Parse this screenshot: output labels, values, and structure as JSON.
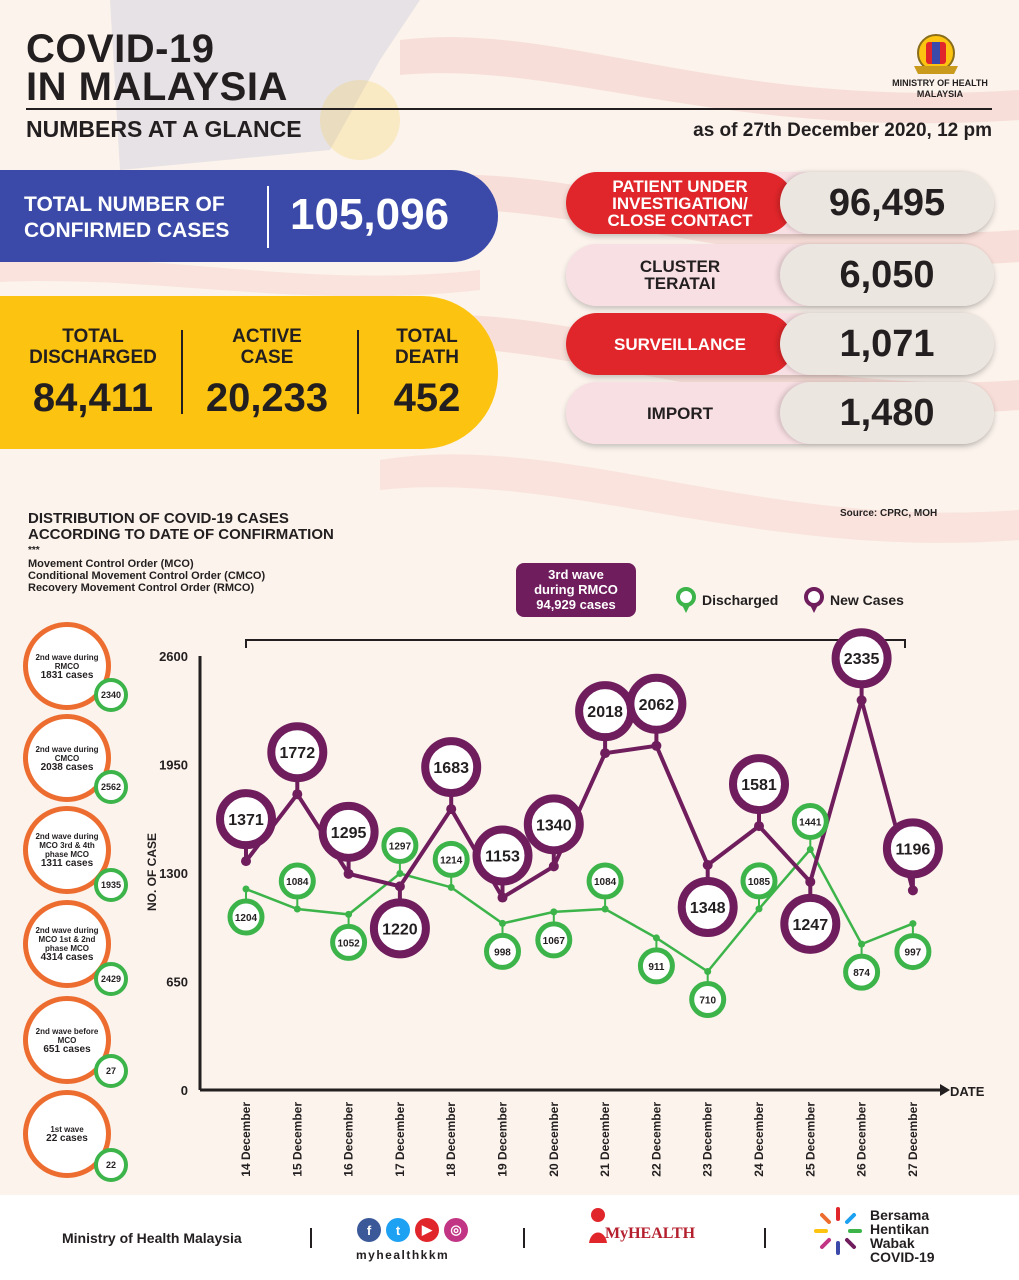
{
  "header": {
    "title_line1": "COVID-19",
    "title_line2": "IN MALAYSIA",
    "subtitle": "NUMBERS AT A GLANCE",
    "as_of": "as of 27th December 2020, 12 pm",
    "ministry_line1": "MINISTRY OF HEALTH",
    "ministry_line2": "MALAYSIA"
  },
  "totals": {
    "confirmed_label1": "TOTAL NUMBER OF",
    "confirmed_label2": "CONFIRMED CASES",
    "confirmed_value": "105,096",
    "discharged_label1": "TOTAL",
    "discharged_label2": "DISCHARGED",
    "discharged_value": "84,411",
    "active_label1": "ACTIVE",
    "active_label2": "CASE",
    "active_value": "20,233",
    "death_label1": "TOTAL",
    "death_label2": "DEATH",
    "death_value": "452"
  },
  "categories": [
    {
      "label": "PATIENT UNDER INVESTIGATION/ CLOSE CONTACT",
      "value": "96,495"
    },
    {
      "label": "CLUSTER TERATAI",
      "value": "6,050"
    },
    {
      "label": "SURVEILLANCE",
      "value": "1,071"
    },
    {
      "label": "IMPORT",
      "value": "1,480"
    }
  ],
  "chart_section": {
    "title_line1": "DISTRIBUTION OF COVID-19 CASES",
    "title_line2": "ACCORDING TO DATE OF CONFIRMATION",
    "stars": "***",
    "mco": "Movement Control Order (MCO)",
    "cmco": "Conditional Movement Control Order (CMCO)",
    "rmco": "Recovery Movement Control Order (RMCO)",
    "source": "Source: CPRC, MOH",
    "wave_line1": "3rd wave",
    "wave_line2": "during RMCO",
    "wave_line3": "94,929 cases",
    "legend_discharged": "Discharged",
    "legend_new": "New Cases",
    "ylabel": "NO. OF CASE",
    "xlabel": "DATE"
  },
  "waves": [
    {
      "text": "2nd wave during RMCO",
      "cases": "1831 cases",
      "discharged": "2340"
    },
    {
      "text": "2nd wave during CMCO",
      "cases": "2038 cases",
      "discharged": "2562"
    },
    {
      "text": "2nd wave during MCO 3rd & 4th phase MCO",
      "cases": "1311 cases",
      "discharged": "1935"
    },
    {
      "text": "2nd wave during MCO 1st & 2nd phase MCO",
      "cases": "4314 cases",
      "discharged": "2429"
    },
    {
      "text": "2nd wave before MCO",
      "cases": "651 cases",
      "discharged": "27"
    },
    {
      "text": "1st wave",
      "cases": "22 cases",
      "discharged": "22"
    }
  ],
  "chart_data": {
    "type": "line",
    "x": [
      "14 December",
      "15 December",
      "16 December",
      "17 December",
      "18 December",
      "19 December",
      "20 December",
      "21 December",
      "22 December",
      "23 December",
      "24 December",
      "25 December",
      "26 December",
      "27 December"
    ],
    "series": [
      {
        "name": "New Cases",
        "color": "#6f1d5d",
        "values": [
          1371,
          1772,
          1295,
          1220,
          1683,
          1153,
          1340,
          2018,
          2062,
          1348,
          1581,
          1247,
          2335,
          1196
        ]
      },
      {
        "name": "Discharged",
        "color": "#3cb44a",
        "values": [
          1204,
          1084,
          1052,
          1297,
          1214,
          998,
          1067,
          1084,
          911,
          710,
          1085,
          1441,
          874,
          997
        ]
      }
    ],
    "ylabel": "NO. OF CASE",
    "xlabel": "DATE",
    "yticks": [
      0,
      650,
      1300,
      1950,
      2600
    ],
    "ylim": [
      0,
      2600
    ]
  },
  "footer": {
    "ministry": "Ministry of Health Malaysia",
    "handle": "myhealthkkm",
    "myhealth": "MyHEALTH",
    "bersama1": "Bersama",
    "bersama2": "Hentikan",
    "bersama3": "Wabak",
    "bersama4": "COVID-19"
  }
}
